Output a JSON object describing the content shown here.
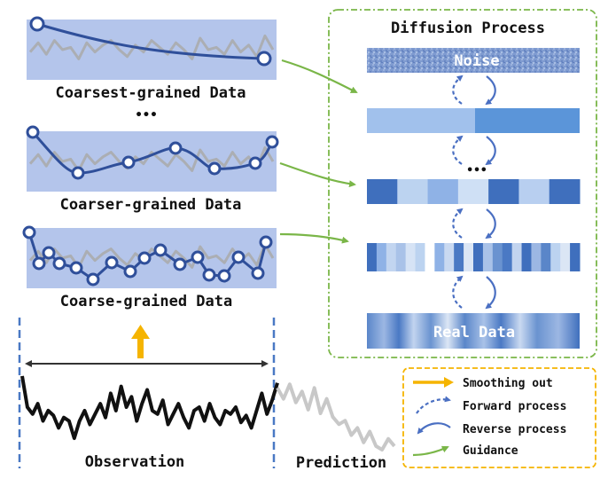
{
  "panels": {
    "coarsest_label": "Coarsest-grained Data",
    "coarser_label": "Coarser-grained Data",
    "coarse_label": "Coarse-grained Data",
    "ellipsis": "•••"
  },
  "diffusion": {
    "title": "Diffusion Process",
    "noise_label": "Noise",
    "real_label": "Real Data",
    "ellipsis": "•••"
  },
  "bottom": {
    "observation_label": "Observation",
    "prediction_label": "Prediction"
  },
  "legend": {
    "smoothing": "Smoothing out",
    "forward": "Forward process",
    "reverse": "Reverse process",
    "guidance": "Guidance"
  },
  "colors": {
    "panel_fill": "#b4c5eb",
    "curve": "#2f4f9a",
    "gray_series": "#a9a9a9",
    "arrow_green": "#7ab648",
    "legend_yellow": "#f5b400",
    "process_blue": "#4a79c4",
    "dashed_blue": "#4a6fc2"
  }
}
